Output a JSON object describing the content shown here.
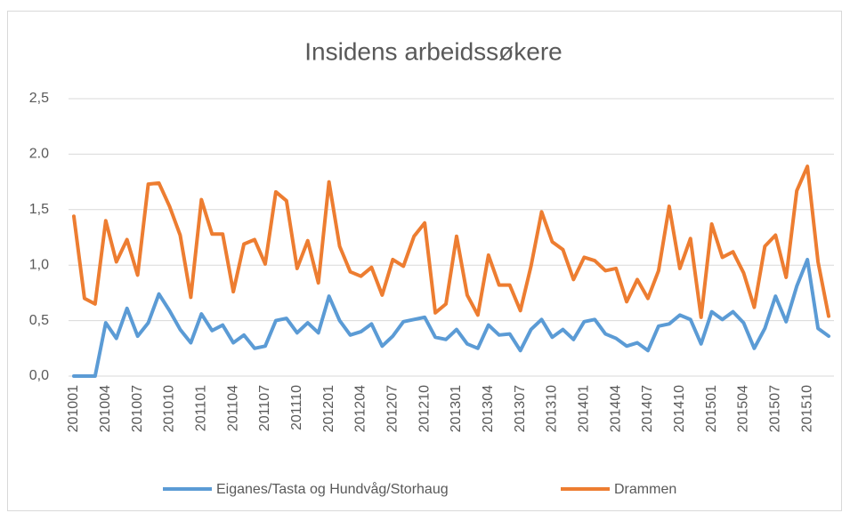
{
  "chart_data": {
    "type": "line",
    "title": "Insidens arbeidssøkere",
    "categories": [
      "201001",
      null,
      null,
      "201004",
      null,
      null,
      "201007",
      null,
      null,
      "201010",
      null,
      null,
      "201101",
      null,
      null,
      "201104",
      null,
      null,
      "201107",
      null,
      null,
      "201110",
      null,
      null,
      "201201",
      null,
      null,
      "201204",
      null,
      null,
      "201207",
      null,
      null,
      "201210",
      null,
      null,
      "201301",
      null,
      null,
      "201304",
      null,
      null,
      "201307",
      null,
      null,
      "201310",
      null,
      null,
      "201401",
      null,
      null,
      "201404",
      null,
      null,
      "201407",
      null,
      null,
      "201410",
      null,
      null,
      "201501",
      null,
      null,
      "201504",
      null,
      null,
      "201507",
      null,
      null,
      "201510",
      null,
      null
    ],
    "series": [
      {
        "name": "Eiganes/Tasta og Hundvåg/Storhaug",
        "color": "#5b9bd5",
        "values": [
          0,
          0,
          0,
          0.48,
          0.34,
          0.61,
          0.36,
          0.48,
          0.74,
          0.59,
          0.42,
          0.3,
          0.56,
          0.41,
          0.46,
          0.3,
          0.37,
          0.25,
          0.27,
          0.5,
          0.52,
          0.39,
          0.48,
          0.39,
          0.72,
          0.5,
          0.37,
          0.4,
          0.47,
          0.27,
          0.36,
          0.49,
          0.51,
          0.53,
          0.35,
          0.33,
          0.42,
          0.29,
          0.25,
          0.46,
          0.37,
          0.38,
          0.23,
          0.42,
          0.51,
          0.35,
          0.42,
          0.33,
          0.49,
          0.51,
          0.38,
          0.34,
          0.27,
          0.3,
          0.23,
          0.45,
          0.47,
          0.55,
          0.51,
          0.29,
          0.58,
          0.51,
          0.58,
          0.48,
          0.25,
          0.43,
          0.72,
          0.49,
          0.81,
          1.05,
          0.43,
          0.36
        ]
      },
      {
        "name": "Drammen",
        "color": "#ed7d31",
        "values": [
          1.44,
          0.7,
          0.65,
          1.4,
          1.03,
          1.23,
          0.91,
          1.73,
          1.74,
          1.53,
          1.27,
          0.71,
          1.59,
          1.28,
          1.28,
          0.76,
          1.19,
          1.23,
          1.01,
          1.66,
          1.58,
          0.97,
          1.22,
          0.84,
          1.75,
          1.17,
          0.94,
          0.9,
          0.98,
          0.73,
          1.05,
          0.99,
          1.26,
          1.38,
          0.57,
          0.65,
          1.26,
          0.73,
          0.55,
          1.09,
          0.82,
          0.82,
          0.59,
          0.99,
          1.48,
          1.21,
          1.14,
          0.87,
          1.07,
          1.04,
          0.95,
          0.97,
          0.67,
          0.87,
          0.7,
          0.95,
          1.53,
          0.97,
          1.24,
          0.53,
          1.37,
          1.07,
          1.12,
          0.93,
          0.62,
          1.17,
          1.27,
          0.89,
          1.67,
          1.89,
          1.03,
          0.54
        ]
      }
    ],
    "ylim": [
      0,
      2.5
    ],
    "yticks": [
      {
        "value": 0,
        "label": "0,0"
      },
      {
        "value": 0.5,
        "label": "0,5"
      },
      {
        "value": 1,
        "label": "1,0"
      },
      {
        "value": 1.5,
        "label": "1,5"
      },
      {
        "value": 2,
        "label": "2.0"
      },
      {
        "value": 2.5,
        "label": "2,5"
      }
    ],
    "grid": true,
    "legend": "bottom"
  }
}
